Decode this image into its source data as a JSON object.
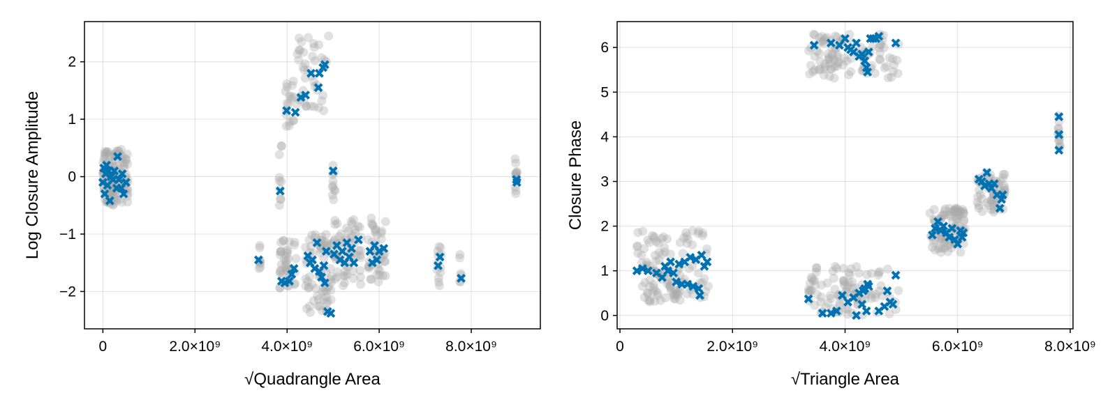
{
  "colors": {
    "obs": "#a9a9a9",
    "model": "#0072b2"
  },
  "chart_data": [
    {
      "type": "scatter",
      "xlabel": "√Quadrangle Area",
      "ylabel": "Log Closure Amplitude",
      "xlim": [
        -400000000,
        9500000000
      ],
      "ylim": [
        -2.65,
        2.7
      ],
      "xticks": [
        {
          "v": 0,
          "label": "0"
        },
        {
          "v": 2000000000,
          "label": "2.0×10⁹"
        },
        {
          "v": 4000000000,
          "label": "4.0×10⁹"
        },
        {
          "v": 6000000000,
          "label": "6.0×10⁹"
        },
        {
          "v": 8000000000,
          "label": "8.0×10⁹"
        }
      ],
      "yticks": [
        {
          "v": -2,
          "label": "−2"
        },
        {
          "v": -1,
          "label": "−1"
        },
        {
          "v": 0,
          "label": "0"
        },
        {
          "v": 1,
          "label": "1"
        },
        {
          "v": 2,
          "label": "2"
        }
      ],
      "grid": true,
      "series": [
        {
          "marker": "circle",
          "clusters": [
            {
              "x": [
                0,
                300000000
              ],
              "y": [
                -0.5,
                0.45
              ],
              "n": 90
            },
            {
              "x": [
                300000000,
                550000000
              ],
              "y": [
                -0.45,
                0.55
              ],
              "n": 40
            },
            {
              "x": [
                3380000000,
                3420000000
              ],
              "y": [
                -1.6,
                -1.05
              ],
              "n": 8
            },
            {
              "x": [
                3830000000,
                3880000000
              ],
              "y": [
                -0.5,
                0.55
              ],
              "n": 10
            },
            {
              "x": [
                3830000000,
                4200000000
              ],
              "y": [
                -1.95,
                -1.1
              ],
              "n": 40
            },
            {
              "x": [
                3950000000,
                4150000000
              ],
              "y": [
                0.65,
                1.7
              ],
              "n": 18
            },
            {
              "x": [
                4200000000,
                4900000000
              ],
              "y": [
                1.0,
                2.45
              ],
              "n": 40
            },
            {
              "x": [
                4400000000,
                5000000000
              ],
              "y": [
                -2.4,
                -1.0
              ],
              "n": 70
            },
            {
              "x": [
                4980000000,
                5050000000
              ],
              "y": [
                -0.4,
                0.25
              ],
              "n": 10
            },
            {
              "x": [
                5000000000,
                5600000000
              ],
              "y": [
                -1.9,
                -0.75
              ],
              "n": 60
            },
            {
              "x": [
                5750000000,
                6150000000
              ],
              "y": [
                -1.9,
                -0.7
              ],
              "n": 40
            },
            {
              "x": [
                7250000000,
                7350000000
              ],
              "y": [
                -2.0,
                -1.2
              ],
              "n": 12
            },
            {
              "x": [
                7740000000,
                7800000000
              ],
              "y": [
                -1.9,
                -1.35
              ],
              "n": 6
            },
            {
              "x": [
                8950000000,
                9000000000
              ],
              "y": [
                -0.3,
                0.42
              ],
              "n": 12
            }
          ]
        },
        {
          "marker": "cross",
          "points": [
            [
              0,
              -0.1
            ],
            [
              20000000,
              0.15
            ],
            [
              40000000,
              -0.3
            ],
            [
              60000000,
              0.05
            ],
            [
              80000000,
              0.2
            ],
            [
              100000000,
              -0.15
            ],
            [
              120000000,
              0.1
            ],
            [
              150000000,
              -0.42
            ],
            [
              180000000,
              0.0
            ],
            [
              220000000,
              -0.05
            ],
            [
              250000000,
              0.1
            ],
            [
              300000000,
              -0.2
            ],
            [
              320000000,
              0.35
            ],
            [
              350000000,
              -0.05
            ],
            [
              400000000,
              -0.2
            ],
            [
              420000000,
              0.05
            ],
            [
              450000000,
              -0.3
            ],
            [
              500000000,
              -0.1
            ],
            [
              3380000000,
              -1.45
            ],
            [
              3850000000,
              -0.25
            ],
            [
              3880000000,
              -1.82
            ],
            [
              3950000000,
              -1.85
            ],
            [
              4050000000,
              -1.82
            ],
            [
              4100000000,
              -1.7
            ],
            [
              4150000000,
              -1.6
            ],
            [
              3990000000,
              1.15
            ],
            [
              4180000000,
              1.12
            ],
            [
              4300000000,
              1.38
            ],
            [
              4400000000,
              1.42
            ],
            [
              4520000000,
              1.8
            ],
            [
              4680000000,
              1.55
            ],
            [
              4700000000,
              1.8
            ],
            [
              4780000000,
              1.9
            ],
            [
              4820000000,
              1.95
            ],
            [
              4450000000,
              -1.38
            ],
            [
              4500000000,
              -1.5
            ],
            [
              4550000000,
              -1.45
            ],
            [
              4600000000,
              -1.6
            ],
            [
              4650000000,
              -1.15
            ],
            [
              4700000000,
              -1.65
            ],
            [
              4750000000,
              -1.75
            ],
            [
              4800000000,
              -1.55
            ],
            [
              4820000000,
              -1.85
            ],
            [
              4850000000,
              -1.3
            ],
            [
              4880000000,
              -2.35
            ],
            [
              4950000000,
              -2.38
            ],
            [
              5000000000,
              0.1
            ],
            [
              5020000000,
              -1.35
            ],
            [
              5080000000,
              -1.2
            ],
            [
              5150000000,
              -1.45
            ],
            [
              5200000000,
              -1.3
            ],
            [
              5250000000,
              -1.5
            ],
            [
              5300000000,
              -1.15
            ],
            [
              5350000000,
              -1.4
            ],
            [
              5400000000,
              -1.25
            ],
            [
              5450000000,
              -1.5
            ],
            [
              5550000000,
              -1.1
            ],
            [
              5800000000,
              -1.3
            ],
            [
              5850000000,
              -1.5
            ],
            [
              5900000000,
              -1.2
            ],
            [
              5950000000,
              -1.45
            ],
            [
              6000000000,
              -1.3
            ],
            [
              6100000000,
              -1.25
            ],
            [
              7280000000,
              -1.55
            ],
            [
              7320000000,
              -1.4
            ],
            [
              7780000000,
              -1.77
            ],
            [
              8980000000,
              -0.05
            ],
            [
              8990000000,
              -0.1
            ]
          ]
        }
      ]
    },
    {
      "type": "scatter",
      "xlabel": "√Triangle Area",
      "ylabel": "Closure Phase",
      "xlim": [
        -50000000,
        8050000000
      ],
      "ylim": [
        -0.3,
        6.58
      ],
      "xticks": [
        {
          "v": 0,
          "label": "0"
        },
        {
          "v": 2000000000,
          "label": "2.0×10⁹"
        },
        {
          "v": 4000000000,
          "label": "4.0×10⁹"
        },
        {
          "v": 6000000000,
          "label": "6.0×10⁹"
        },
        {
          "v": 8000000000,
          "label": "8.0×10⁹"
        }
      ],
      "yticks": [
        {
          "v": 0,
          "label": "0"
        },
        {
          "v": 1,
          "label": "1"
        },
        {
          "v": 2,
          "label": "2"
        },
        {
          "v": 3,
          "label": "3"
        },
        {
          "v": 4,
          "label": "4"
        },
        {
          "v": 5,
          "label": "5"
        },
        {
          "v": 6,
          "label": "6"
        }
      ],
      "grid": true,
      "series": [
        {
          "marker": "circle",
          "clusters": [
            {
              "x": [
                300000000,
                1600000000
              ],
              "y": [
                0.3,
                1.9
              ],
              "n": 120
            },
            {
              "x": [
                3350000000,
                3400000000
              ],
              "y": [
                0.2,
                0.9
              ],
              "n": 8
            },
            {
              "x": [
                3400000000,
                4950000000
              ],
              "y": [
                0.0,
                1.1
              ],
              "n": 90
            },
            {
              "x": [
                3350000000,
                4950000000
              ],
              "y": [
                5.3,
                6.3
              ],
              "n": 100
            },
            {
              "x": [
                5500000000,
                6150000000
              ],
              "y": [
                1.4,
                2.4
              ],
              "n": 90
            },
            {
              "x": [
                6350000000,
                6850000000
              ],
              "y": [
                2.3,
                3.2
              ],
              "n": 60
            },
            {
              "x": [
                7780000000,
                7820000000
              ],
              "y": [
                3.7,
                4.6
              ],
              "n": 12
            }
          ]
        },
        {
          "marker": "cross",
          "points": [
            [
              300000000,
              1.0
            ],
            [
              400000000,
              1.05
            ],
            [
              500000000,
              1.0
            ],
            [
              650000000,
              0.95
            ],
            [
              750000000,
              0.85
            ],
            [
              800000000,
              1.1
            ],
            [
              850000000,
              1.0
            ],
            [
              900000000,
              1.2
            ],
            [
              950000000,
              0.95
            ],
            [
              1000000000,
              0.75
            ],
            [
              1050000000,
              1.15
            ],
            [
              1100000000,
              0.7
            ],
            [
              1150000000,
              1.2
            ],
            [
              1200000000,
              0.7
            ],
            [
              1250000000,
              1.3
            ],
            [
              1300000000,
              0.65
            ],
            [
              1350000000,
              1.25
            ],
            [
              1400000000,
              0.6
            ],
            [
              1420000000,
              0.45
            ],
            [
              1450000000,
              1.35
            ],
            [
              1500000000,
              1.1
            ],
            [
              1550000000,
              1.2
            ],
            [
              3350000000,
              0.37
            ],
            [
              3600000000,
              0.05
            ],
            [
              3750000000,
              0.05
            ],
            [
              3850000000,
              0.1
            ],
            [
              3950000000,
              0.45
            ],
            [
              4050000000,
              0.3
            ],
            [
              4150000000,
              0.4
            ],
            [
              4200000000,
              0.0
            ],
            [
              4250000000,
              0.5
            ],
            [
              4300000000,
              0.25
            ],
            [
              4320000000,
              0.55
            ],
            [
              4350000000,
              0.6
            ],
            [
              4380000000,
              0.1
            ],
            [
              4400000000,
              0.7
            ],
            [
              4420000000,
              0.65
            ],
            [
              4600000000,
              0.1
            ],
            [
              4700000000,
              0.2
            ],
            [
              4750000000,
              0.55
            ],
            [
              4800000000,
              0.3
            ],
            [
              4850000000,
              0.25
            ],
            [
              4900000000,
              0.9
            ],
            [
              3450000000,
              6.05
            ],
            [
              3750000000,
              6.1
            ],
            [
              3900000000,
              6.05
            ],
            [
              4000000000,
              6.2
            ],
            [
              4050000000,
              6.0
            ],
            [
              4100000000,
              5.95
            ],
            [
              4150000000,
              5.9
            ],
            [
              4200000000,
              6.1
            ],
            [
              4250000000,
              5.8
            ],
            [
              4300000000,
              5.85
            ],
            [
              4350000000,
              5.7
            ],
            [
              4380000000,
              5.55
            ],
            [
              4400000000,
              5.45
            ],
            [
              4420000000,
              5.9
            ],
            [
              4450000000,
              6.2
            ],
            [
              4500000000,
              6.2
            ],
            [
              4550000000,
              6.2
            ],
            [
              4600000000,
              6.25
            ],
            [
              4900000000,
              6.1
            ],
            [
              5550000000,
              1.8
            ],
            [
              5600000000,
              1.95
            ],
            [
              5650000000,
              2.1
            ],
            [
              5700000000,
              1.9
            ],
            [
              5750000000,
              2.0
            ],
            [
              5800000000,
              1.85
            ],
            [
              5850000000,
              1.75
            ],
            [
              5900000000,
              1.95
            ],
            [
              5950000000,
              1.7
            ],
            [
              6000000000,
              1.6
            ],
            [
              6050000000,
              1.9
            ],
            [
              6080000000,
              1.75
            ],
            [
              6100000000,
              1.85
            ],
            [
              6380000000,
              3.05
            ],
            [
              6430000000,
              3.0
            ],
            [
              6480000000,
              2.9
            ],
            [
              6520000000,
              3.2
            ],
            [
              6560000000,
              2.95
            ],
            [
              6600000000,
              2.85
            ],
            [
              6650000000,
              2.95
            ],
            [
              6700000000,
              2.7
            ],
            [
              6750000000,
              2.4
            ],
            [
              6780000000,
              2.6
            ],
            [
              6800000000,
              2.7
            ],
            [
              7800000000,
              3.7
            ],
            [
              7800000000,
              4.05
            ],
            [
              7800000000,
              4.45
            ]
          ]
        }
      ]
    }
  ]
}
